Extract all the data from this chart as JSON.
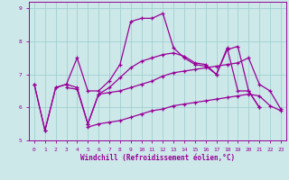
{
  "xlabel": "Windchill (Refroidissement éolien,°C)",
  "bg_color": "#cce8e8",
  "grid_color": "#99cccc",
  "line_color": "#990099",
  "xlim": [
    -0.5,
    23.5
  ],
  "ylim": [
    5.0,
    9.2
  ],
  "yticks": [
    5,
    6,
    7,
    8,
    9
  ],
  "xticks": [
    0,
    1,
    2,
    3,
    4,
    5,
    6,
    7,
    8,
    9,
    10,
    11,
    12,
    13,
    14,
    15,
    16,
    17,
    18,
    19,
    20,
    21,
    22,
    23
  ],
  "line1_x": [
    0,
    1,
    2,
    3,
    4,
    5,
    6,
    7,
    8,
    9,
    10,
    11,
    12,
    13,
    14,
    15,
    16,
    17,
    18,
    19,
    20,
    21
  ],
  "line1_y": [
    6.7,
    5.3,
    6.6,
    6.7,
    7.5,
    6.5,
    6.5,
    6.8,
    7.3,
    8.6,
    8.7,
    8.7,
    8.85,
    7.8,
    7.5,
    7.3,
    7.25,
    7.0,
    7.8,
    6.5,
    6.5,
    6.0
  ],
  "line2_x": [
    0,
    1,
    2,
    3,
    4,
    5,
    6,
    7,
    8,
    9,
    10,
    11,
    12,
    13,
    14,
    15,
    16,
    17,
    18,
    19,
    20,
    21
  ],
  "line2_y": [
    6.7,
    5.3,
    6.6,
    6.7,
    6.6,
    5.5,
    6.4,
    6.6,
    6.9,
    7.2,
    7.4,
    7.5,
    7.6,
    7.65,
    7.55,
    7.35,
    7.3,
    7.0,
    7.75,
    7.85,
    6.5,
    6.0
  ],
  "line3_x": [
    3,
    4,
    5,
    6,
    7,
    8,
    9,
    10,
    11,
    12,
    13,
    14,
    15,
    16,
    17,
    18,
    19,
    20,
    21,
    22,
    23
  ],
  "line3_y": [
    6.6,
    6.55,
    5.5,
    6.4,
    6.45,
    6.5,
    6.6,
    6.7,
    6.8,
    6.95,
    7.05,
    7.1,
    7.15,
    7.2,
    7.25,
    7.3,
    7.35,
    7.5,
    6.7,
    6.5,
    5.95
  ],
  "line4_x": [
    5,
    6,
    7,
    8,
    9,
    10,
    11,
    12,
    13,
    14,
    15,
    16,
    17,
    18,
    19,
    20,
    21,
    22,
    23
  ],
  "line4_y": [
    5.4,
    5.5,
    5.55,
    5.6,
    5.7,
    5.8,
    5.9,
    5.95,
    6.05,
    6.1,
    6.15,
    6.2,
    6.25,
    6.3,
    6.35,
    6.4,
    6.35,
    6.05,
    5.9
  ]
}
